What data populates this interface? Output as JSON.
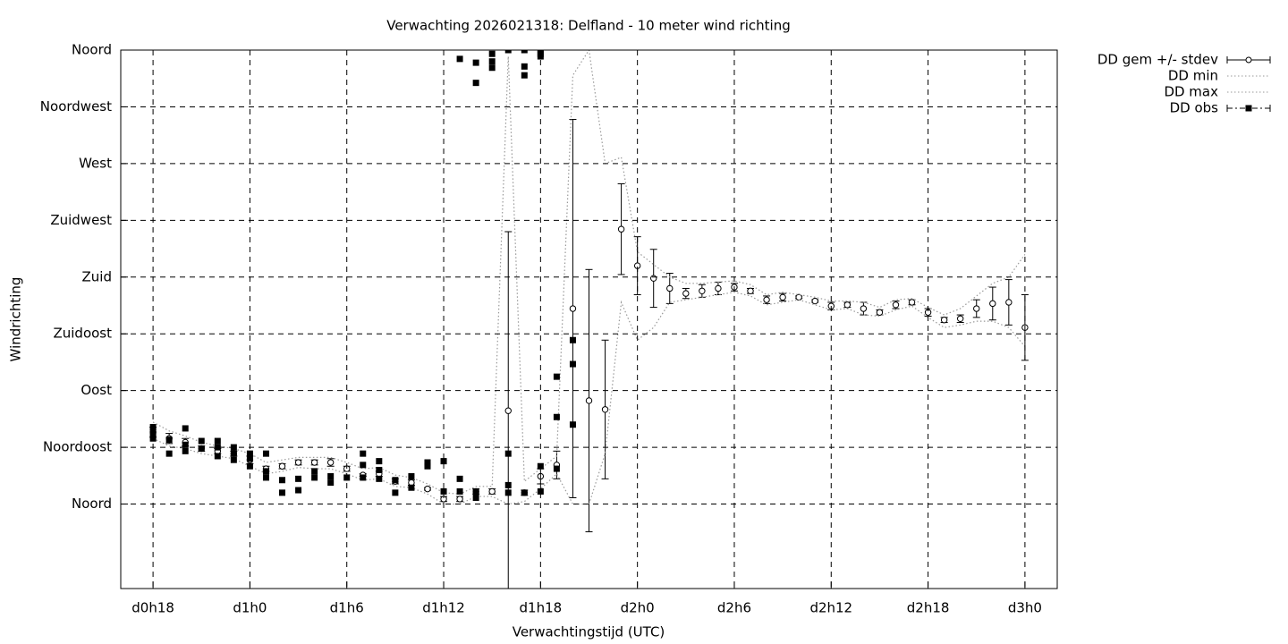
{
  "chart_data": {
    "type": "errorbar",
    "title": "Verwachting 2026021318: Delfland - 10 meter wind richting",
    "xlabel": "Verwachtingstijd (UTC)",
    "ylabel": "Windrichting",
    "xlim": [
      16,
      74
    ],
    "ylim": [
      -67,
      360
    ],
    "xticks": [
      {
        "value": 18,
        "label": "d0h18"
      },
      {
        "value": 24,
        "label": "d1h0"
      },
      {
        "value": 30,
        "label": "d1h6"
      },
      {
        "value": 36,
        "label": "d1h12"
      },
      {
        "value": 42,
        "label": "d1h18"
      },
      {
        "value": 48,
        "label": "d2h0"
      },
      {
        "value": 54,
        "label": "d2h6"
      },
      {
        "value": 60,
        "label": "d2h12"
      },
      {
        "value": 66,
        "label": "d2h18"
      },
      {
        "value": 72,
        "label": "d3h0"
      }
    ],
    "yticks": [
      {
        "value": 0,
        "label": "Noord"
      },
      {
        "value": 45,
        "label": "Noordoost"
      },
      {
        "value": 90,
        "label": "Oost"
      },
      {
        "value": 135,
        "label": "Zuidoost"
      },
      {
        "value": 180,
        "label": "Zuid"
      },
      {
        "value": 225,
        "label": "Zuidwest"
      },
      {
        "value": 270,
        "label": "West"
      },
      {
        "value": 315,
        "label": "Noordwest"
      },
      {
        "value": 360,
        "label": "Noord"
      }
    ],
    "grid": true,
    "legend": "outside-top-right",
    "x": [
      18,
      19,
      20,
      21,
      22,
      23,
      24,
      25,
      26,
      27,
      28,
      29,
      30,
      31,
      32,
      33,
      34,
      35,
      36,
      37,
      38,
      39,
      40,
      41,
      42,
      43,
      44,
      45,
      46,
      47,
      48,
      49,
      50,
      51,
      52,
      53,
      54,
      55,
      56,
      57,
      58,
      59,
      60,
      61,
      62,
      63,
      64,
      65,
      66,
      67,
      68,
      69,
      70,
      71,
      72
    ],
    "series": [
      {
        "name": "DD gem +/- stdev",
        "color": "#000000",
        "style": "errorbar",
        "values": [
          57,
          52,
          49,
          44,
          42,
          40,
          35,
          28,
          30,
          33,
          33,
          33,
          28,
          23,
          24,
          18,
          17,
          12,
          4,
          4,
          10,
          10,
          74,
          9,
          22,
          31,
          155,
          82,
          75,
          218,
          189,
          179,
          171,
          167,
          169,
          171,
          172,
          169,
          162,
          164,
          164,
          161,
          157,
          158,
          155,
          152,
          158,
          160,
          152,
          146,
          147,
          155,
          159,
          160,
          140
        ],
        "errors": [
          4,
          4,
          3,
          2,
          2,
          2,
          3,
          2,
          2,
          2,
          2,
          3,
          2,
          1,
          2,
          2,
          2,
          1,
          2,
          2,
          2,
          2,
          142,
          2,
          6,
          11,
          150,
          104,
          55,
          36,
          23,
          23,
          12,
          4,
          5,
          5,
          3,
          2,
          3,
          3,
          1,
          1,
          3,
          2,
          5,
          2,
          3,
          2,
          3,
          2,
          3,
          7,
          13,
          18,
          26
        ]
      },
      {
        "name": "DD min",
        "color": "#999999",
        "style": "dotted",
        "values": [
          52,
          46,
          44,
          40,
          38,
          36,
          30,
          24,
          26,
          29,
          28,
          28,
          24,
          19,
          20,
          14,
          13,
          8,
          0,
          0,
          6,
          6,
          0,
          2,
          12,
          24,
          0,
          0,
          40,
          160,
          130,
          140,
          160,
          162,
          164,
          166,
          168,
          165,
          158,
          160,
          162,
          158,
          154,
          155,
          150,
          149,
          154,
          157,
          148,
          140,
          142,
          145,
          145,
          140,
          125
        ]
      },
      {
        "name": "DD max",
        "color": "#999999",
        "style": "dotted",
        "values": [
          65,
          58,
          54,
          49,
          46,
          44,
          40,
          33,
          35,
          37,
          37,
          37,
          33,
          28,
          29,
          23,
          21,
          16,
          9,
          8,
          14,
          14,
          355,
          18,
          28,
          38,
          340,
          360,
          270,
          275,
          200,
          190,
          180,
          175,
          175,
          176,
          177,
          174,
          166,
          168,
          166,
          164,
          161,
          161,
          160,
          156,
          162,
          163,
          156,
          150,
          155,
          165,
          175,
          180,
          198
        ]
      },
      {
        "name": "DD obs",
        "color": "#000000",
        "style": "square",
        "x": [
          18,
          18,
          18,
          18,
          19,
          19,
          20,
          20,
          20,
          21,
          21,
          22,
          22,
          22,
          23,
          23,
          23,
          24,
          24,
          24,
          25,
          25,
          25,
          26,
          26,
          27,
          27,
          28,
          28,
          29,
          29,
          30,
          31,
          31,
          31,
          32,
          32,
          32,
          33,
          33,
          34,
          34,
          35,
          35,
          36,
          36,
          37,
          37,
          37,
          38,
          38,
          38,
          38,
          39,
          39,
          39,
          40,
          40,
          40,
          40,
          41,
          41,
          41,
          41,
          42,
          42,
          42,
          42,
          42,
          43,
          43,
          43,
          44,
          44,
          44
        ],
        "values": [
          61,
          58,
          55,
          52,
          51,
          40,
          60,
          47,
          42,
          50,
          44,
          50,
          45,
          38,
          45,
          40,
          35,
          40,
          36,
          30,
          40,
          26,
          21,
          19,
          9,
          20,
          11,
          26,
          21,
          22,
          17,
          21,
          40,
          31,
          21,
          34,
          27,
          20,
          19,
          9,
          22,
          13,
          33,
          30,
          34,
          10,
          20,
          10,
          353,
          10,
          5,
          350,
          334,
          357,
          351,
          346,
          40,
          15,
          9,
          360,
          9,
          360,
          347,
          340,
          30,
          10,
          360,
          357,
          355,
          28,
          101,
          69,
          130,
          111,
          63
        ]
      }
    ]
  }
}
